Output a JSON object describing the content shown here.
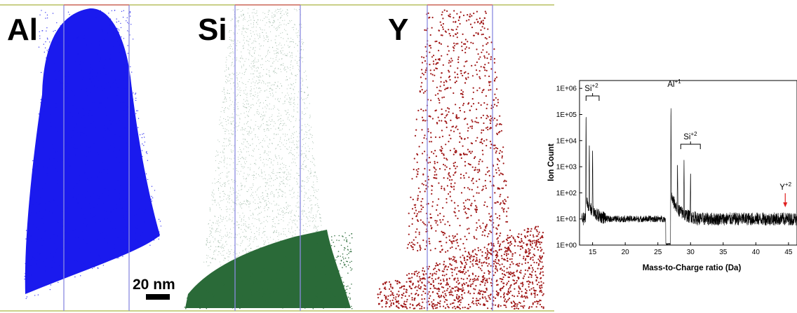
{
  "panels": {
    "al": {
      "label": "Al",
      "color": "#1a1aee"
    },
    "si": {
      "label": "Si",
      "color": "#2a6a38"
    },
    "y": {
      "label": "Y",
      "color": "#a01818"
    }
  },
  "scale_bar": {
    "label": "20 nm"
  },
  "frame_colors": {
    "top": "#d87070",
    "side": "#8a8ae0",
    "baseline": "#b8c060"
  },
  "chart_data": {
    "type": "line",
    "title": "",
    "xlabel": "Mass-to-Charge ratio (Da)",
    "ylabel": "Ion Count",
    "x_ticks": [
      15,
      20,
      25,
      30,
      35,
      40,
      45
    ],
    "y_ticks": [
      "1E+00",
      "1E+01",
      "1E+02",
      "1E+03",
      "1E+04",
      "1E+05",
      "1E+06"
    ],
    "xlim": [
      13,
      46.3
    ],
    "ylim_log10": [
      0,
      6.3
    ],
    "y_scale": "log",
    "line_color": "#000000",
    "peaks": [
      {
        "x": 14.0,
        "y": 300000
      },
      {
        "x": 14.5,
        "y": 15000
      },
      {
        "x": 15.0,
        "y": 10000
      },
      {
        "x": 27.0,
        "y": 600000
      },
      {
        "x": 28.0,
        "y": 2000
      },
      {
        "x": 29.0,
        "y": 4000
      },
      {
        "x": 30.0,
        "y": 1000
      }
    ],
    "background_level": 10,
    "annotations": [
      {
        "label": "Si",
        "charge": "+2",
        "x_range": [
          14,
          16
        ],
        "type": "bracket"
      },
      {
        "label": "Al",
        "charge": "+1",
        "x": 27,
        "type": "text"
      },
      {
        "label": "Si",
        "charge": "+2",
        "x_range": [
          28.5,
          31.5
        ],
        "type": "bracket"
      },
      {
        "label": "Y",
        "charge": "+2",
        "x": 44.5,
        "type": "arrow",
        "arrow_color": "#e02020"
      }
    ]
  }
}
